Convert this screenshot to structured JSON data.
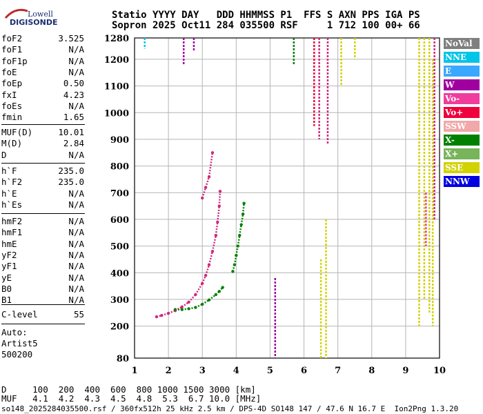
{
  "logo": {
    "top": "Lowell",
    "bottom": "DIGISONDE"
  },
  "header": {
    "line1": "Statio YYYY DAY   DDD HHMMSS P1  FFS S AXN PPS IGA PS",
    "line2": "Sopron 2025 Oct11 284 035500 RSF     1 712 100 00+ 66"
  },
  "params_a": [
    {
      "k": "foF2",
      "v": "3.525"
    },
    {
      "k": "foF1",
      "v": "N/A"
    },
    {
      "k": "foF1p",
      "v": "N/A"
    },
    {
      "k": "foE",
      "v": "N/A"
    },
    {
      "k": "foEp",
      "v": "0.50"
    },
    {
      "k": "fxI",
      "v": "4.23"
    },
    {
      "k": "foEs",
      "v": "N/A"
    },
    {
      "k": "fmin",
      "v": "1.65"
    }
  ],
  "params_b": [
    {
      "k": "MUF(D)",
      "v": "10.01"
    },
    {
      "k": "M(D)",
      "v": "2.84"
    },
    {
      "k": "D",
      "v": "N/A"
    }
  ],
  "params_c": [
    {
      "k": "h`F",
      "v": "235.0"
    },
    {
      "k": "h`F2",
      "v": "235.0"
    },
    {
      "k": "h`E",
      "v": "N/A"
    },
    {
      "k": "h`Es",
      "v": "N/A"
    }
  ],
  "params_d": [
    {
      "k": "hmF2",
      "v": "N/A"
    },
    {
      "k": "hmF1",
      "v": "N/A"
    },
    {
      "k": "hmE",
      "v": "N/A"
    },
    {
      "k": "yF2",
      "v": "N/A"
    },
    {
      "k": "yF1",
      "v": "N/A"
    },
    {
      "k": "yE",
      "v": "N/A"
    },
    {
      "k": "B0",
      "v": "N/A"
    },
    {
      "k": "B1",
      "v": "N/A"
    }
  ],
  "params_e": [
    {
      "k": "C-level",
      "v": "55"
    }
  ],
  "auto": {
    "label": "Auto:",
    "line2": "Artist5",
    "line3": "500200"
  },
  "legend": [
    {
      "label": "NoVal",
      "color": "#7f7f7f"
    },
    {
      "label": "NNE",
      "color": "#00c4e8"
    },
    {
      "label": "E",
      "color": "#3aa8ff"
    },
    {
      "label": "W",
      "color": "#a000a0"
    },
    {
      "label": "Vo-",
      "color": "#f03c9c"
    },
    {
      "label": "Vo+",
      "color": "#f0003c"
    },
    {
      "label": "SSW",
      "color": "#f0a8a8"
    },
    {
      "label": "X-",
      "color": "#008000"
    },
    {
      "label": "X+",
      "color": "#78b45a"
    },
    {
      "label": "SSE",
      "color": "#d2d200"
    },
    {
      "label": "NNW",
      "color": "#0000e0"
    }
  ],
  "dline": "D     100  200  400  600  800 1000 1500 3000 [km]",
  "mufline": "MUF   4.1  4.2  4.3  4.5  4.8  5.3  6.7 10.0 [MHz]",
  "footer": "so148_2025284035500.rsf / 360fx512h 25 kHz 2.5 km / DPS-4D SO148 147 / 47.6 N 16.7 E  Ion2Png 1.3.20",
  "chart_data": {
    "type": "scatter",
    "xlabel": "",
    "ylabel": "",
    "xlim": [
      1,
      10
    ],
    "ylim": [
      80,
      1280
    ],
    "x_ticks": [
      1,
      2,
      3,
      4,
      5,
      6,
      7,
      8,
      9,
      10
    ],
    "y_ticks": [
      80,
      200,
      300,
      400,
      500,
      600,
      700,
      800,
      900,
      1000,
      1100,
      1200,
      1280
    ],
    "grid": true,
    "series": [
      {
        "name": "Vo-",
        "color": "#d0287c",
        "x": [
          1.65,
          1.8,
          2.0,
          2.2,
          2.4,
          2.6,
          2.8,
          3.0,
          3.1,
          3.2,
          3.3,
          3.4,
          3.45,
          3.5,
          3.525
        ],
        "y": [
          235,
          240,
          248,
          258,
          272,
          290,
          318,
          360,
          390,
          430,
          480,
          540,
          590,
          650,
          705
        ]
      },
      {
        "name": "X-",
        "color": "#008000",
        "x": [
          2.2,
          2.4,
          2.6,
          2.8,
          3.0,
          3.2,
          3.4,
          3.5,
          3.6
        ],
        "y": [
          262,
          262,
          265,
          270,
          282,
          298,
          318,
          330,
          345
        ]
      },
      {
        "name": "X-",
        "color": "#008000",
        "x": [
          3.9,
          3.95,
          4.0,
          4.05,
          4.1,
          4.15,
          4.2,
          4.23
        ],
        "y": [
          405,
          430,
          465,
          500,
          540,
          580,
          620,
          660
        ]
      },
      {
        "name": "Vo-",
        "color": "#d0287c",
        "x": [
          3.0,
          3.1,
          3.2,
          3.3
        ],
        "y": [
          680,
          720,
          760,
          850
        ]
      }
    ]
  }
}
